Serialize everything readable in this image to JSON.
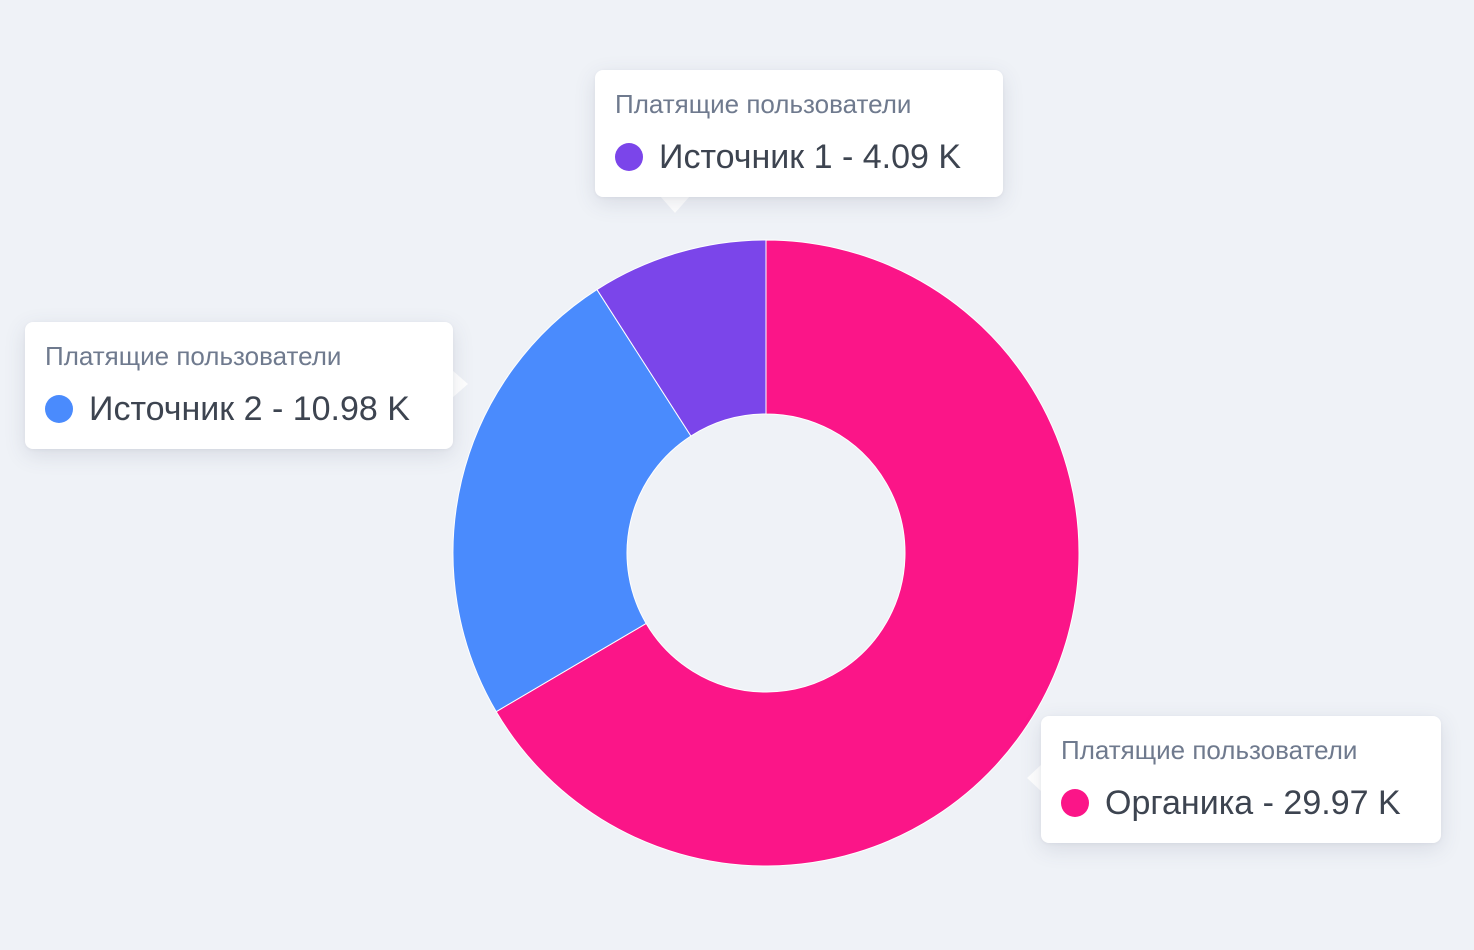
{
  "chart_data": {
    "type": "pie",
    "donut": true,
    "slices": [
      {
        "label": "Органика",
        "value": 29.97,
        "color": "#fb1588"
      },
      {
        "label": "Источник 2",
        "value": 10.98,
        "color": "#4a8bfd"
      },
      {
        "label": "Источник 1",
        "value": 4.09,
        "color": "#7b45ea"
      }
    ],
    "unit": "K",
    "start": "top",
    "direction": "clockwise"
  },
  "tooltips": [
    {
      "title": "Платящие пользователи",
      "text": "Источник 1 - 4.09 K",
      "color": "#7b45ea"
    },
    {
      "title": "Платящие пользователи",
      "text": "Источник 2 - 10.98 K",
      "color": "#4a8bfd"
    },
    {
      "title": "Платящие пользователи",
      "text": "Органика - 29.97 K",
      "color": "#fb1588"
    }
  ]
}
